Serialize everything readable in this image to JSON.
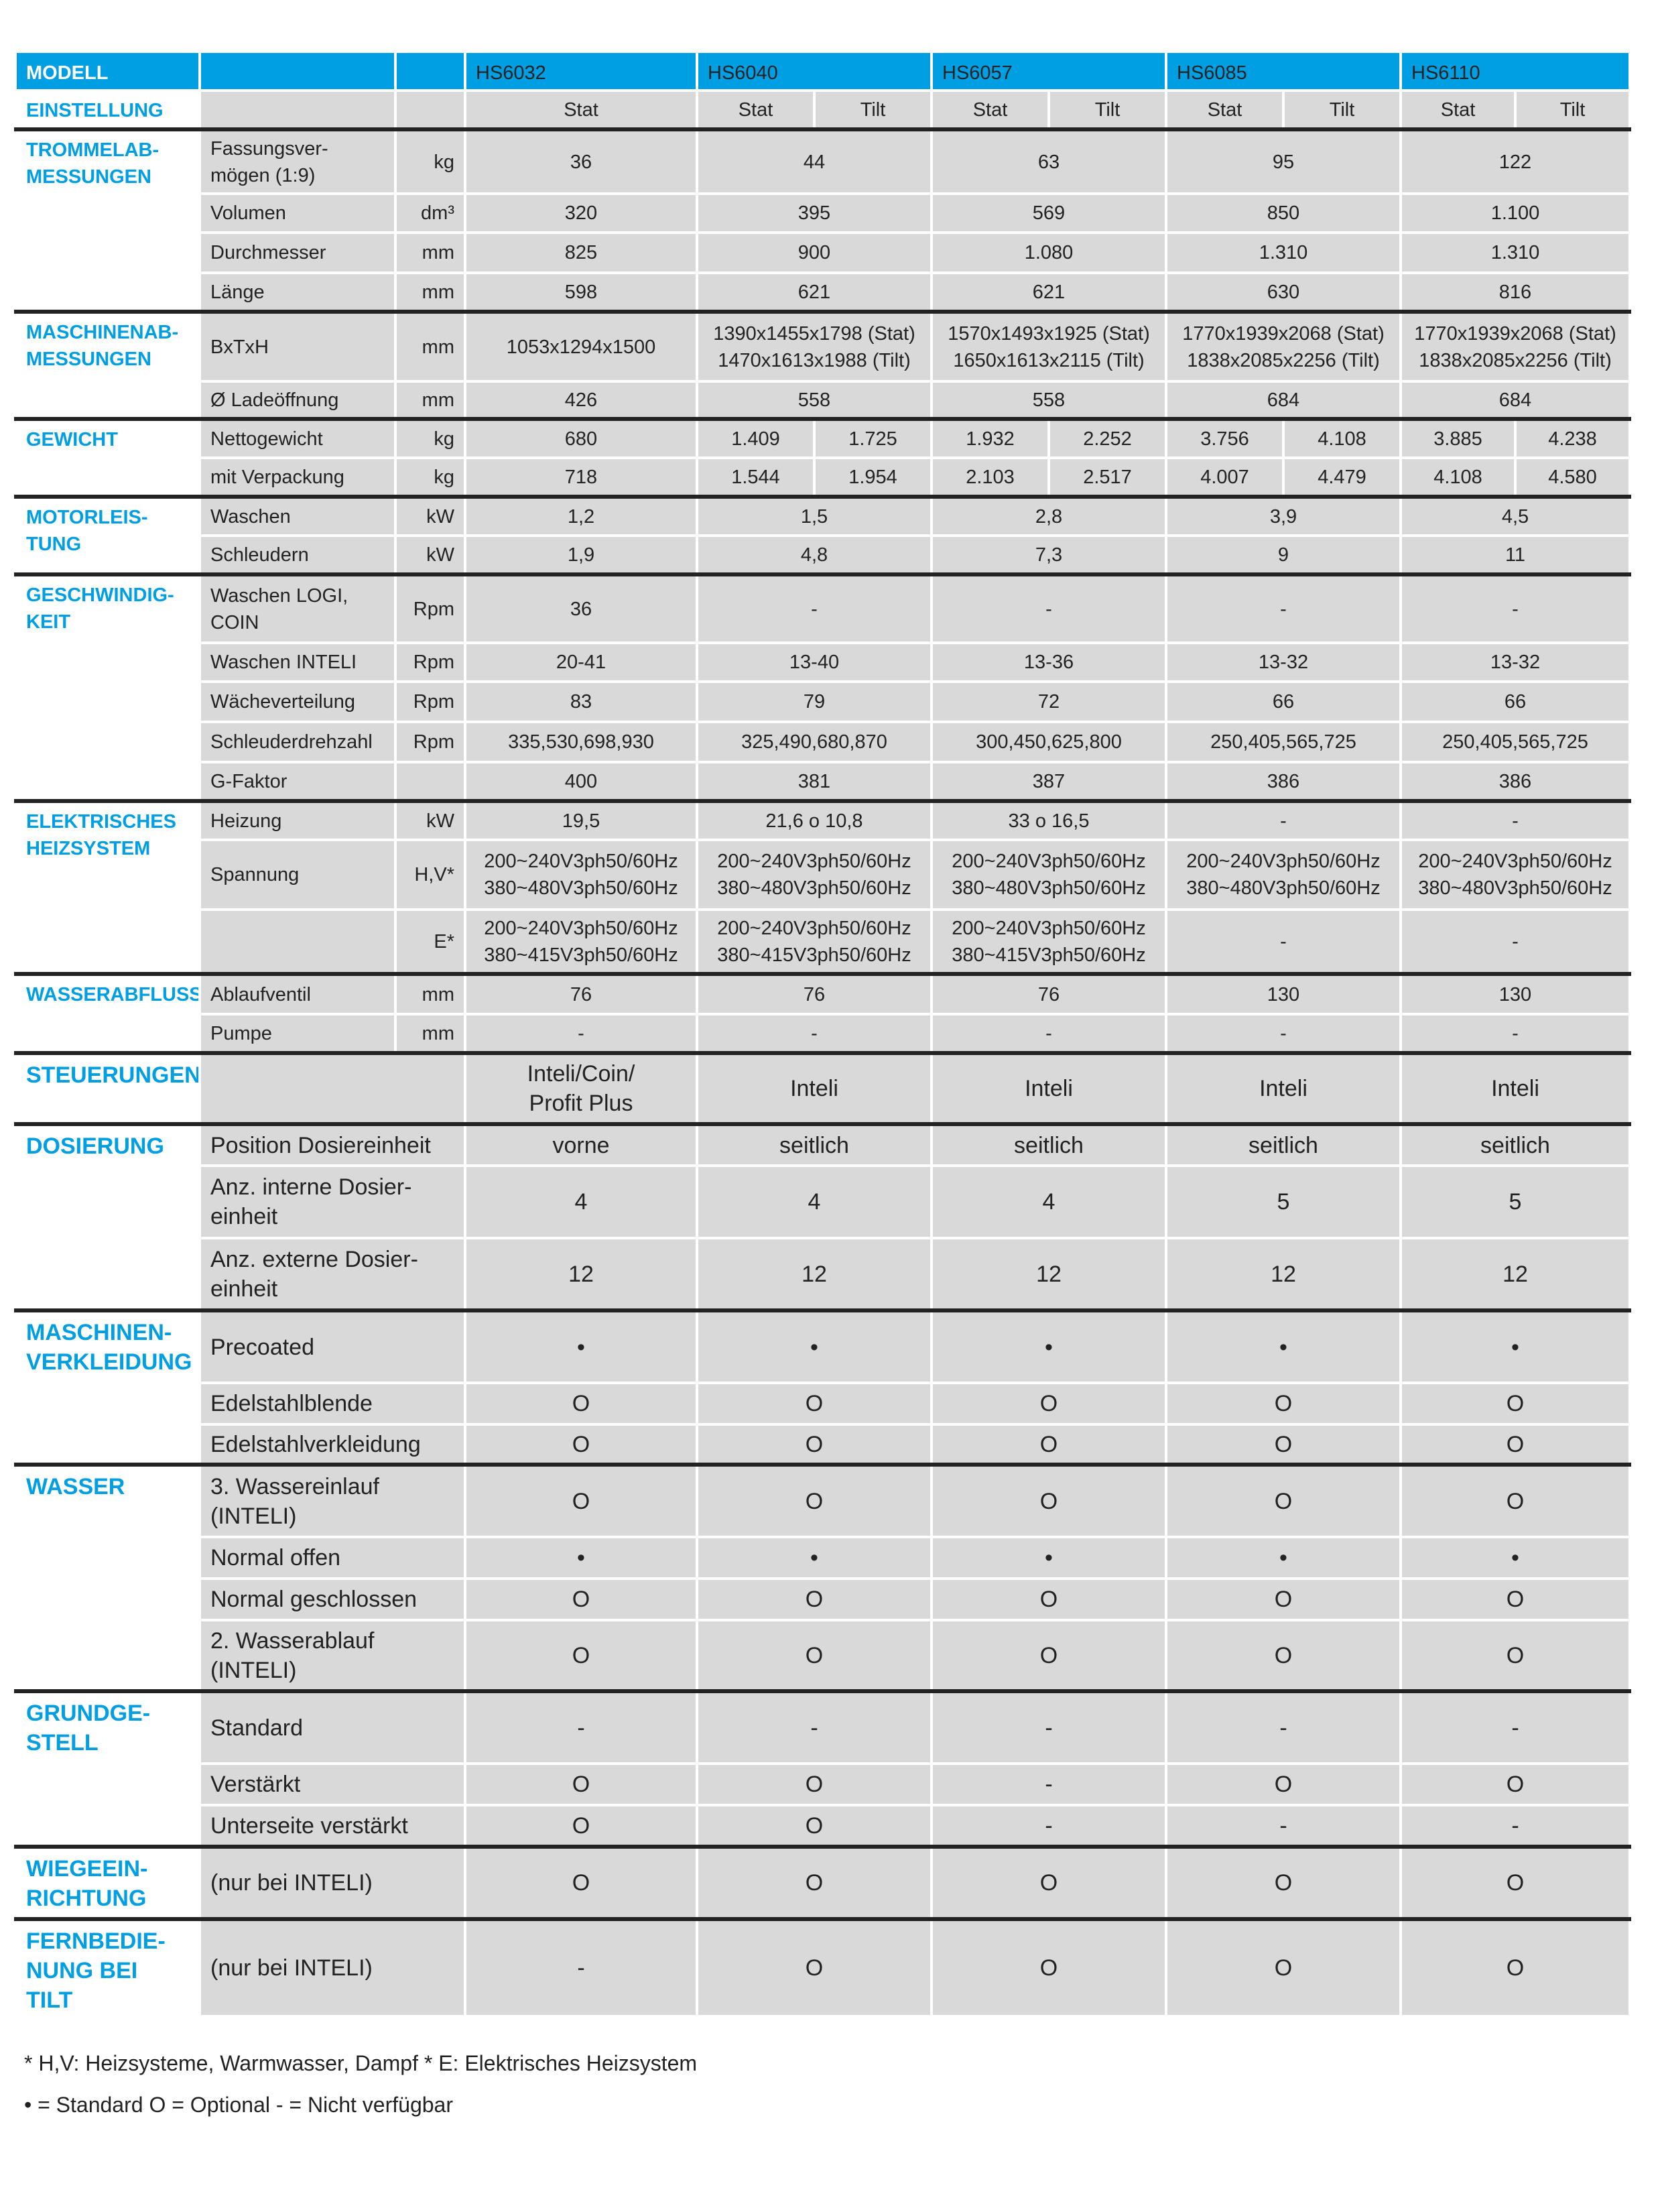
{
  "header": {
    "label": "MODELL",
    "models": [
      "HS6032",
      "HS6040",
      "HS6057",
      "HS6085",
      "HS6110"
    ]
  },
  "setting": {
    "label": "EINSTELLUNG",
    "values": [
      "Stat",
      [
        "Stat",
        "Tilt"
      ],
      [
        "Stat",
        "Tilt"
      ],
      [
        "Stat",
        "Tilt"
      ],
      [
        "Stat",
        "Tilt"
      ]
    ]
  },
  "sections": [
    {
      "label": "TROMMELAB-\nMESSUNGEN",
      "rows": [
        {
          "param": "Fassungsver-\nmögen (1:9)",
          "unit": "kg",
          "values": [
            "36",
            "44",
            "63",
            "95",
            "122"
          ]
        },
        {
          "param": "Volumen",
          "unit": "dm³",
          "values": [
            "320",
            "395",
            "569",
            "850",
            "1.100"
          ]
        },
        {
          "param": "Durchmesser",
          "unit": "mm",
          "values": [
            "825",
            "900",
            "1.080",
            "1.310",
            "1.310"
          ]
        },
        {
          "param": "Länge",
          "unit": "mm",
          "values": [
            "598",
            "621",
            "621",
            "630",
            "816"
          ]
        }
      ]
    },
    {
      "label": "MASCHINENAB-\nMESSUNGEN",
      "rows": [
        {
          "param": "BxTxH",
          "unit": "mm",
          "values": [
            "1053x1294x1500",
            "1390x1455x1798 (Stat)\n1470x1613x1988 (Tilt)",
            "1570x1493x1925 (Stat)\n1650x1613x2115 (Tilt)",
            "1770x1939x2068 (Stat)\n1838x2085x2256 (Tilt)",
            "1770x1939x2068 (Stat)\n1838x2085x2256 (Tilt)"
          ]
        },
        {
          "param": "Ø Ladeöffnung",
          "unit": "mm",
          "values": [
            "426",
            "558",
            "558",
            "684",
            "684"
          ]
        }
      ]
    },
    {
      "label": "GEWICHT",
      "rows": [
        {
          "param": "Nettogewicht",
          "unit": "kg",
          "values": [
            "680",
            [
              "1.409",
              "1.725"
            ],
            [
              "1.932",
              "2.252"
            ],
            [
              "3.756",
              "4.108"
            ],
            [
              "3.885",
              "4.238"
            ]
          ]
        },
        {
          "param": "mit Verpackung",
          "unit": "kg",
          "values": [
            "718",
            [
              "1.544",
              "1.954"
            ],
            [
              "2.103",
              "2.517"
            ],
            [
              "4.007",
              "4.479"
            ],
            [
              "4.108",
              "4.580"
            ]
          ]
        }
      ]
    },
    {
      "label": "MOTORLEIS-\nTUNG",
      "rows": [
        {
          "param": "Waschen",
          "unit": "kW",
          "values": [
            "1,2",
            "1,5",
            "2,8",
            "3,9",
            "4,5"
          ]
        },
        {
          "param": "Schleudern",
          "unit": "kW",
          "values": [
            "1,9",
            "4,8",
            "7,3",
            "9",
            "11"
          ]
        }
      ]
    },
    {
      "label": "GESCHWINDIG-\nKEIT",
      "rows": [
        {
          "param": "Waschen LOGI,\nCOIN",
          "unit": "Rpm",
          "values": [
            "36",
            "-",
            "-",
            "-",
            "-"
          ]
        },
        {
          "param": "Waschen INTELI",
          "unit": "Rpm",
          "values": [
            "20-41",
            "13-40",
            "13-36",
            "13-32",
            "13-32"
          ]
        },
        {
          "param": "Wächeverteilung",
          "unit": "Rpm",
          "values": [
            "83",
            "79",
            "72",
            "66",
            "66"
          ]
        },
        {
          "param": "Schleuderdrehzahl",
          "unit": "Rpm",
          "values": [
            "335,530,698,930",
            "325,490,680,870",
            "300,450,625,800",
            "250,405,565,725",
            "250,405,565,725"
          ]
        },
        {
          "param": "G-Faktor",
          "unit": "",
          "values": [
            "400",
            "381",
            "387",
            "386",
            "386"
          ]
        }
      ]
    },
    {
      "label": "ELEKTRISCHES\nHEIZSYSTEM",
      "rows": [
        {
          "param": "Heizung",
          "unit": "kW",
          "values": [
            "19,5",
            "21,6 o 10,8",
            "33 o 16,5",
            "-",
            "-"
          ]
        },
        {
          "param": "Spannung",
          "unit": "H,V*",
          "values": [
            "200~240V3ph50/60Hz\n380~480V3ph50/60Hz",
            "200~240V3ph50/60Hz\n380~480V3ph50/60Hz",
            "200~240V3ph50/60Hz\n380~480V3ph50/60Hz",
            "200~240V3ph50/60Hz\n380~480V3ph50/60Hz",
            "200~240V3ph50/60Hz\n380~480V3ph50/60Hz"
          ]
        },
        {
          "param": "",
          "unit": "E*",
          "values": [
            "200~240V3ph50/60Hz\n380~415V3ph50/60Hz",
            "200~240V3ph50/60Hz\n380~415V3ph50/60Hz",
            "200~240V3ph50/60Hz\n380~415V3ph50/60Hz",
            "-",
            "-"
          ]
        }
      ]
    },
    {
      "label": "WASSERABFLUSS",
      "rows": [
        {
          "param": "Ablaufventil",
          "unit": "mm",
          "values": [
            "76",
            "76",
            "76",
            "130",
            "130"
          ]
        },
        {
          "param": "Pumpe",
          "unit": "mm",
          "values": [
            "-",
            "-",
            "-",
            "-",
            "-"
          ]
        }
      ]
    },
    {
      "label": "STEUERUNGEN",
      "big": true,
      "rows": [
        {
          "param": "",
          "values": [
            "Inteli/Coin/\nProfit Plus",
            "Inteli",
            "Inteli",
            "Inteli",
            "Inteli"
          ]
        }
      ]
    },
    {
      "label": "DOSIERUNG",
      "big": true,
      "rows": [
        {
          "param": "Position Dosiereinheit",
          "values": [
            "vorne",
            "seitlich",
            "seitlich",
            "seitlich",
            "seitlich"
          ]
        },
        {
          "param": "Anz. interne Dosier-\neinheit",
          "values": [
            "4",
            "4",
            "4",
            "5",
            "5"
          ]
        },
        {
          "param": "Anz. externe Dosier-\neinheit",
          "values": [
            "12",
            "12",
            "12",
            "12",
            "12"
          ]
        }
      ]
    },
    {
      "label": "MASCHINEN-\nVERKLEIDUNG",
      "big": true,
      "rows": [
        {
          "param": "Precoated",
          "values": [
            "•",
            "•",
            "•",
            "•",
            "•"
          ]
        },
        {
          "param": "Edelstahlblende",
          "values": [
            "O",
            "O",
            "O",
            "O",
            "O"
          ]
        },
        {
          "param": "Edelstahlverkleidung",
          "values": [
            "O",
            "O",
            "O",
            "O",
            "O"
          ]
        }
      ]
    },
    {
      "label": "WASSER",
      "big": true,
      "rows": [
        {
          "param": "3. Wassereinlauf\n(INTELI)",
          "values": [
            "O",
            "O",
            "O",
            "O",
            "O"
          ]
        },
        {
          "param": "Normal offen",
          "values": [
            "•",
            "•",
            "•",
            "•",
            "•"
          ]
        },
        {
          "param": "Normal geschlossen",
          "values": [
            "O",
            "O",
            "O",
            "O",
            "O"
          ]
        },
        {
          "param": "2. Wasserablauf\n(INTELI)",
          "values": [
            "O",
            "O",
            "O",
            "O",
            "O"
          ]
        }
      ]
    },
    {
      "label": "GRUNDGE-\nSTELL",
      "big": true,
      "rows": [
        {
          "param": "Standard",
          "values": [
            "-",
            "-",
            "-",
            "-",
            "-"
          ]
        },
        {
          "param": "Verstärkt",
          "values": [
            "O",
            "O",
            "-",
            "O",
            "O"
          ]
        },
        {
          "param": "Unterseite verstärkt",
          "values": [
            "O",
            "O",
            "-",
            "-",
            "-"
          ]
        }
      ]
    },
    {
      "label": "WIEGEEIN-\nRICHTUNG",
      "big": true,
      "rows": [
        {
          "param": "(nur bei INTELI)",
          "values": [
            "O",
            "O",
            "O",
            "O",
            "O"
          ]
        }
      ]
    },
    {
      "label": "FERNBEDIE-\nNUNG BEI TILT",
      "big": true,
      "rows": [
        {
          "param": "(nur bei INTELI)",
          "values": [
            "-",
            "O",
            "O",
            "O",
            "O"
          ]
        }
      ]
    }
  ],
  "footnotes": [
    "* H,V: Heizsysteme, Warmwasser, Dampf   * E: Elektrisches Heizsystem",
    "• = Standard   O = Optional   - = Nicht verfügbar"
  ]
}
